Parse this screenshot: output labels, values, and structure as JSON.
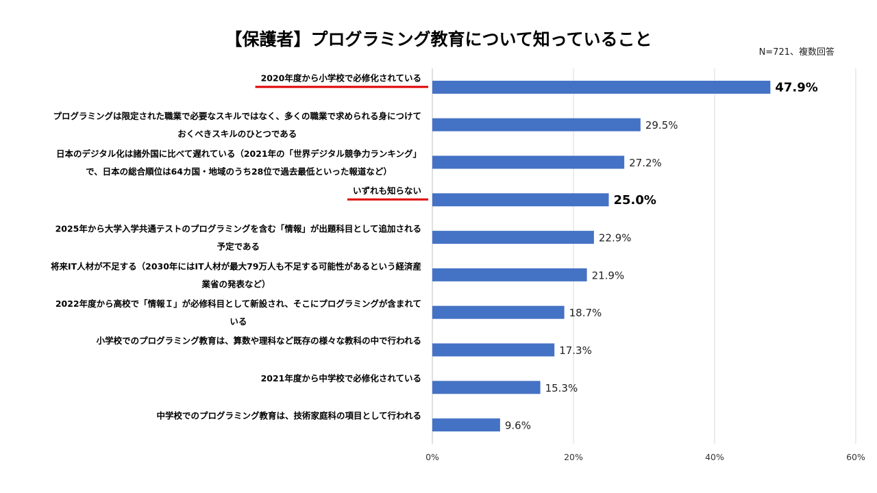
{
  "title": "【保護者】プログラミング教育について知っていること",
  "note": "N=721、複数回答",
  "chart_data": {
    "type": "bar",
    "orientation": "horizontal",
    "title": "【保護者】プログラミング教育について知っていること",
    "xlim": [
      0,
      60
    ],
    "xticks": [
      "0%",
      "20%",
      "40%",
      "60%"
    ],
    "grid": true,
    "bar_color": "#4472C4",
    "highlight_color": "#E00000",
    "categories": [
      {
        "lines": [
          "2020年度から小学校で必修化されている"
        ],
        "highlight": true
      },
      {
        "lines": [
          "プログラミングは限定された職業で必要なスキルではなく、多くの職業で求められる身につけて",
          "おくべきスキルのひとつである"
        ],
        "highlight": false
      },
      {
        "lines": [
          "日本のデジタル化は諸外国に比べて遅れている（2021年の「世界デジタル競争力ランキング」",
          "で、日本の総合順位は64カ国・地域のうち28位で過去最低といった報道など）"
        ],
        "highlight": false
      },
      {
        "lines": [
          "いずれも知らない"
        ],
        "highlight": true
      },
      {
        "lines": [
          "2025年から大学入学共通テストのプログラミングを含む「情報」が出題科目として追加される",
          "予定である"
        ],
        "highlight": false
      },
      {
        "lines": [
          "将来IT人材が不足する（2030年にはIT人材が最大79万人も不足する可能性があるという経済産",
          "業省の発表など）"
        ],
        "highlight": false
      },
      {
        "lines": [
          "2022年度から高校で「情報Ｉ」が必修科目として新設され、そこにプログラミングが含まれて",
          "いる"
        ],
        "highlight": false
      },
      {
        "lines": [
          "小学校でのプログラミング教育は、算数や理科など既存の様々な教科の中で行われる"
        ],
        "highlight": false
      },
      {
        "lines": [
          "2021年度から中学校で必修化されている"
        ],
        "highlight": false
      },
      {
        "lines": [
          "中学校でのプログラミング教育は、技術家庭科の項目として行われる"
        ],
        "highlight": false
      }
    ],
    "values": [
      47.9,
      29.5,
      27.2,
      25.0,
      22.9,
      21.9,
      18.7,
      17.3,
      15.3,
      9.6
    ],
    "value_labels": [
      "47.9%",
      "29.5%",
      "27.2%",
      "25.0%",
      "22.9%",
      "21.9%",
      "18.7%",
      "17.3%",
      "15.3%",
      "9.6%"
    ]
  }
}
